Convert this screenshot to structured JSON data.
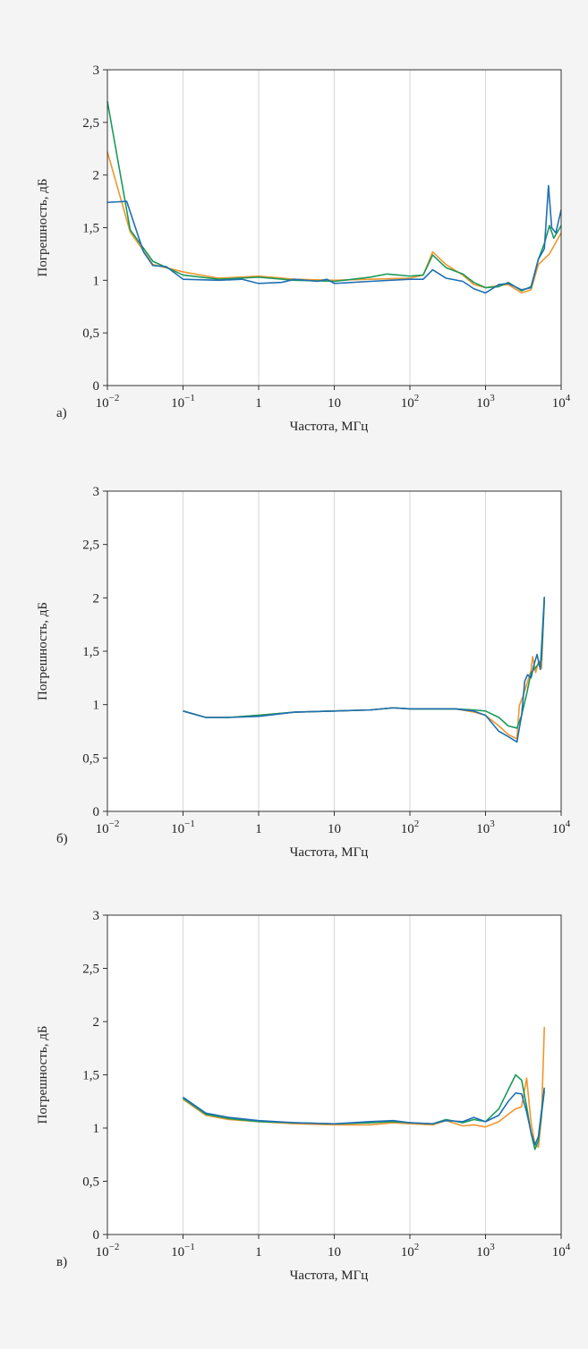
{
  "colors": {
    "background": "#f4f4f4",
    "plot_area": "#ffffff",
    "grid": "#d6d6d6",
    "axis": "#333333",
    "blue": "#1f6fb2",
    "orange": "#f0962e",
    "green": "#1a9a5a"
  },
  "chart_data": [
    {
      "type": "line",
      "panel_label": "а)",
      "xlabel": "Частота, МГц",
      "ylabel": "Погрешность, дБ",
      "x_scale": "log",
      "xlim": [
        0.01,
        10000
      ],
      "ylim": [
        0,
        3
      ],
      "x_ticks": [
        {
          "value": 0.01,
          "base": "10",
          "exp": "−2"
        },
        {
          "value": 0.1,
          "base": "10",
          "exp": "−1"
        },
        {
          "value": 1,
          "base": "1",
          "exp": ""
        },
        {
          "value": 10,
          "base": "10",
          "exp": ""
        },
        {
          "value": 100,
          "base": "10",
          "exp": "2"
        },
        {
          "value": 1000,
          "base": "10",
          "exp": "3"
        },
        {
          "value": 10000,
          "base": "10",
          "exp": "4"
        }
      ],
      "y_ticks": [
        "0",
        "0,5",
        "1",
        "1,5",
        "2",
        "2,5",
        "3"
      ],
      "grid": "vertical",
      "series": [
        {
          "color": "orange",
          "points": [
            [
              0.01,
              2.22
            ],
            [
              0.02,
              1.46
            ],
            [
              0.04,
              1.15
            ],
            [
              0.1,
              1.08
            ],
            [
              0.3,
              1.02
            ],
            [
              1,
              1.04
            ],
            [
              3,
              1.01
            ],
            [
              10,
              1.0
            ],
            [
              30,
              1.01
            ],
            [
              100,
              1.02
            ],
            [
              150,
              1.05
            ],
            [
              200,
              1.27
            ],
            [
              300,
              1.15
            ],
            [
              500,
              1.05
            ],
            [
              700,
              0.96
            ],
            [
              1000,
              0.93
            ],
            [
              1500,
              0.95
            ],
            [
              2000,
              0.96
            ],
            [
              3000,
              0.88
            ],
            [
              4000,
              0.91
            ],
            [
              5000,
              1.15
            ],
            [
              7000,
              1.25
            ],
            [
              10000,
              1.45
            ]
          ]
        },
        {
          "color": "green",
          "points": [
            [
              0.01,
              2.7
            ],
            [
              0.02,
              1.48
            ],
            [
              0.04,
              1.18
            ],
            [
              0.1,
              1.05
            ],
            [
              0.3,
              1.01
            ],
            [
              1,
              1.03
            ],
            [
              3,
              1.0
            ],
            [
              10,
              0.99
            ],
            [
              30,
              1.03
            ],
            [
              50,
              1.06
            ],
            [
              100,
              1.04
            ],
            [
              150,
              1.05
            ],
            [
              200,
              1.24
            ],
            [
              300,
              1.12
            ],
            [
              500,
              1.06
            ],
            [
              700,
              0.98
            ],
            [
              1000,
              0.93
            ],
            [
              1500,
              0.94
            ],
            [
              2000,
              0.98
            ],
            [
              3000,
              0.9
            ],
            [
              4000,
              0.94
            ],
            [
              5000,
              1.2
            ],
            [
              6000,
              1.35
            ],
            [
              7000,
              1.52
            ],
            [
              8000,
              1.4
            ],
            [
              10000,
              1.52
            ]
          ]
        },
        {
          "color": "blue",
          "points": [
            [
              0.01,
              1.74
            ],
            [
              0.018,
              1.75
            ],
            [
              0.03,
              1.27
            ],
            [
              0.04,
              1.14
            ],
            [
              0.06,
              1.13
            ],
            [
              0.1,
              1.01
            ],
            [
              0.3,
              1.0
            ],
            [
              0.6,
              1.01
            ],
            [
              1,
              0.97
            ],
            [
              2,
              0.98
            ],
            [
              3,
              1.01
            ],
            [
              6,
              0.99
            ],
            [
              8,
              1.01
            ],
            [
              10,
              0.97
            ],
            [
              30,
              0.99
            ],
            [
              100,
              1.01
            ],
            [
              150,
              1.01
            ],
            [
              200,
              1.1
            ],
            [
              300,
              1.02
            ],
            [
              500,
              0.99
            ],
            [
              700,
              0.92
            ],
            [
              1000,
              0.88
            ],
            [
              1500,
              0.96
            ],
            [
              2000,
              0.97
            ],
            [
              3000,
              0.91
            ],
            [
              4000,
              0.93
            ],
            [
              5000,
              1.2
            ],
            [
              6000,
              1.3
            ],
            [
              6800,
              1.9
            ],
            [
              7500,
              1.5
            ],
            [
              8500,
              1.45
            ],
            [
              10000,
              1.67
            ]
          ]
        }
      ]
    },
    {
      "type": "line",
      "panel_label": "б)",
      "xlabel": "Частота, МГц",
      "ylabel": "Погрешность, дБ",
      "x_scale": "log",
      "xlim": [
        0.01,
        10000
      ],
      "ylim": [
        0,
        3
      ],
      "x_ticks": [
        {
          "value": 0.01,
          "base": "10",
          "exp": "−2"
        },
        {
          "value": 0.1,
          "base": "10",
          "exp": "−1"
        },
        {
          "value": 1,
          "base": "1",
          "exp": ""
        },
        {
          "value": 10,
          "base": "10",
          "exp": ""
        },
        {
          "value": 100,
          "base": "10",
          "exp": "2"
        },
        {
          "value": 1000,
          "base": "10",
          "exp": "3"
        },
        {
          "value": 10000,
          "base": "10",
          "exp": "4"
        }
      ],
      "y_ticks": [
        "0",
        "0,5",
        "1",
        "1,5",
        "2",
        "2,5",
        "3"
      ],
      "grid": "vertical",
      "series": [
        {
          "color": "orange",
          "points": [
            [
              0.1,
              0.94
            ],
            [
              0.2,
              0.88
            ],
            [
              0.4,
              0.88
            ],
            [
              1,
              0.9
            ],
            [
              3,
              0.93
            ],
            [
              10,
              0.94
            ],
            [
              30,
              0.95
            ],
            [
              60,
              0.97
            ],
            [
              100,
              0.96
            ],
            [
              200,
              0.96
            ],
            [
              400,
              0.96
            ],
            [
              700,
              0.93
            ],
            [
              1000,
              0.9
            ],
            [
              1500,
              0.8
            ],
            [
              2000,
              0.72
            ],
            [
              2600,
              0.68
            ],
            [
              2800,
              0.99
            ],
            [
              3200,
              1.1
            ],
            [
              4000,
              1.32
            ],
            [
              4200,
              1.45
            ],
            [
              4600,
              1.3
            ],
            [
              5000,
              1.4
            ],
            [
              5500,
              1.34
            ],
            [
              6000,
              2.0
            ]
          ]
        },
        {
          "color": "green",
          "points": [
            [
              0.1,
              0.94
            ],
            [
              0.2,
              0.88
            ],
            [
              0.4,
              0.88
            ],
            [
              1,
              0.9
            ],
            [
              3,
              0.93
            ],
            [
              10,
              0.94
            ],
            [
              30,
              0.95
            ],
            [
              60,
              0.97
            ],
            [
              100,
              0.96
            ],
            [
              200,
              0.96
            ],
            [
              400,
              0.96
            ],
            [
              700,
              0.95
            ],
            [
              1000,
              0.94
            ],
            [
              1500,
              0.88
            ],
            [
              2000,
              0.8
            ],
            [
              2600,
              0.78
            ],
            [
              3000,
              0.9
            ],
            [
              3500,
              1.1
            ],
            [
              4000,
              1.3
            ],
            [
              4500,
              1.34
            ],
            [
              5000,
              1.38
            ],
            [
              5500,
              1.42
            ],
            [
              6000,
              1.98
            ]
          ]
        },
        {
          "color": "blue",
          "points": [
            [
              0.1,
              0.94
            ],
            [
              0.2,
              0.88
            ],
            [
              0.4,
              0.88
            ],
            [
              1,
              0.89
            ],
            [
              3,
              0.93
            ],
            [
              10,
              0.94
            ],
            [
              30,
              0.95
            ],
            [
              60,
              0.97
            ],
            [
              100,
              0.96
            ],
            [
              200,
              0.96
            ],
            [
              400,
              0.96
            ],
            [
              700,
              0.94
            ],
            [
              1000,
              0.9
            ],
            [
              1500,
              0.75
            ],
            [
              2000,
              0.7
            ],
            [
              2600,
              0.65
            ],
            [
              3000,
              0.9
            ],
            [
              3300,
              1.22
            ],
            [
              3600,
              1.28
            ],
            [
              4000,
              1.25
            ],
            [
              4400,
              1.38
            ],
            [
              4800,
              1.47
            ],
            [
              5300,
              1.33
            ],
            [
              6000,
              2.01
            ]
          ]
        }
      ]
    },
    {
      "type": "line",
      "panel_label": "в)",
      "xlabel": "Частота, МГц",
      "ylabel": "Погрешность, дБ",
      "x_scale": "log",
      "xlim": [
        0.01,
        10000
      ],
      "ylim": [
        0,
        3
      ],
      "x_ticks": [
        {
          "value": 0.01,
          "base": "10",
          "exp": "−2"
        },
        {
          "value": 0.1,
          "base": "10",
          "exp": "−1"
        },
        {
          "value": 1,
          "base": "1",
          "exp": ""
        },
        {
          "value": 10,
          "base": "10",
          "exp": ""
        },
        {
          "value": 100,
          "base": "10",
          "exp": "2"
        },
        {
          "value": 1000,
          "base": "10",
          "exp": "3"
        },
        {
          "value": 10000,
          "base": "10",
          "exp": "4"
        }
      ],
      "y_ticks": [
        "0",
        "0,5",
        "1",
        "1,5",
        "2",
        "2,5",
        "3"
      ],
      "grid": "vertical",
      "series": [
        {
          "color": "orange",
          "points": [
            [
              0.1,
              1.27
            ],
            [
              0.2,
              1.12
            ],
            [
              0.4,
              1.08
            ],
            [
              1,
              1.06
            ],
            [
              3,
              1.04
            ],
            [
              10,
              1.03
            ],
            [
              30,
              1.03
            ],
            [
              60,
              1.05
            ],
            [
              100,
              1.04
            ],
            [
              200,
              1.03
            ],
            [
              300,
              1.07
            ],
            [
              500,
              1.02
            ],
            [
              700,
              1.03
            ],
            [
              1000,
              1.01
            ],
            [
              1500,
              1.06
            ],
            [
              2000,
              1.13
            ],
            [
              2500,
              1.18
            ],
            [
              3000,
              1.2
            ],
            [
              3500,
              1.47
            ],
            [
              4000,
              1.05
            ],
            [
              4500,
              0.85
            ],
            [
              5000,
              0.82
            ],
            [
              5500,
              1.1
            ],
            [
              6000,
              1.95
            ]
          ]
        },
        {
          "color": "green",
          "points": [
            [
              0.1,
              1.28
            ],
            [
              0.2,
              1.13
            ],
            [
              0.4,
              1.09
            ],
            [
              1,
              1.06
            ],
            [
              3,
              1.05
            ],
            [
              10,
              1.04
            ],
            [
              30,
              1.05
            ],
            [
              60,
              1.06
            ],
            [
              100,
              1.05
            ],
            [
              200,
              1.04
            ],
            [
              300,
              1.08
            ],
            [
              500,
              1.05
            ],
            [
              700,
              1.08
            ],
            [
              1000,
              1.06
            ],
            [
              1500,
              1.18
            ],
            [
              2000,
              1.36
            ],
            [
              2500,
              1.5
            ],
            [
              3000,
              1.45
            ],
            [
              3500,
              1.2
            ],
            [
              4000,
              0.95
            ],
            [
              4500,
              0.8
            ],
            [
              5000,
              0.88
            ],
            [
              6000,
              1.35
            ]
          ]
        },
        {
          "color": "blue",
          "points": [
            [
              0.1,
              1.29
            ],
            [
              0.2,
              1.14
            ],
            [
              0.4,
              1.1
            ],
            [
              1,
              1.07
            ],
            [
              3,
              1.05
            ],
            [
              10,
              1.04
            ],
            [
              30,
              1.06
            ],
            [
              60,
              1.07
            ],
            [
              100,
              1.05
            ],
            [
              200,
              1.04
            ],
            [
              300,
              1.07
            ],
            [
              500,
              1.06
            ],
            [
              700,
              1.1
            ],
            [
              1000,
              1.06
            ],
            [
              1500,
              1.12
            ],
            [
              2000,
              1.25
            ],
            [
              2500,
              1.33
            ],
            [
              3000,
              1.32
            ],
            [
              3500,
              1.15
            ],
            [
              4000,
              0.96
            ],
            [
              4500,
              0.84
            ],
            [
              5000,
              0.92
            ],
            [
              6000,
              1.38
            ]
          ]
        }
      ]
    }
  ]
}
